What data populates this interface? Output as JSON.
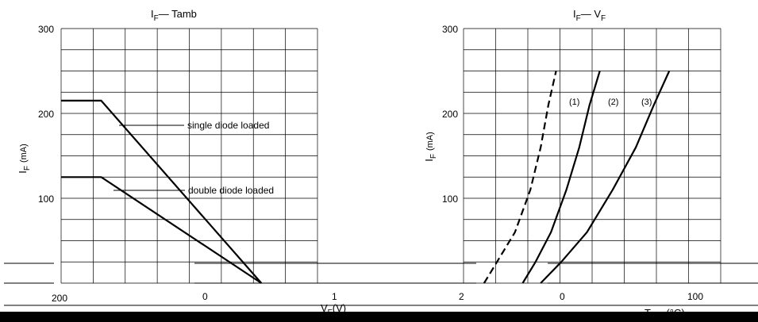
{
  "chart_data": [
    {
      "type": "line",
      "title": "I",
      "title_sub": "F",
      "title_rest": "— Tamb",
      "ylabel": "I",
      "ylabel_sub": "F",
      "ylabel_rest": "(mA)",
      "ylim": [
        0,
        300
      ],
      "yticks": [
        100,
        200,
        300
      ],
      "grid": true,
      "series": [
        {
          "name": "single diode loaded",
          "x": [
            0,
            25,
            125
          ],
          "y": [
            215,
            215,
            0
          ]
        },
        {
          "name": "double diode loaded",
          "x": [
            0,
            25,
            125
          ],
          "y": [
            125,
            125,
            0
          ]
        }
      ]
    },
    {
      "type": "line",
      "title": "I",
      "title_sub": "F",
      "title_rest": "— V",
      "title_sub2": "F",
      "ylabel": "I",
      "ylabel_sub": "F",
      "ylabel_rest": "(mA)",
      "ylim": [
        0,
        300
      ],
      "yticks": [
        100,
        200,
        300
      ],
      "grid": true,
      "series": [
        {
          "name": "(1)",
          "style": "dashed",
          "x": [
            0.38,
            0.43,
            0.5,
            0.56,
            0.6,
            0.63,
            0.66
          ],
          "y": [
            0,
            25,
            60,
            110,
            160,
            210,
            250
          ]
        },
        {
          "name": "(2)",
          "style": "solid",
          "x": [
            0.53,
            0.58,
            0.64,
            0.7,
            0.75,
            0.79,
            0.83
          ],
          "y": [
            0,
            25,
            60,
            110,
            160,
            210,
            250
          ]
        },
        {
          "name": "(3)",
          "style": "solid",
          "x": [
            0.6,
            0.68,
            0.78,
            0.88,
            0.97,
            1.04,
            1.1
          ],
          "y": [
            0,
            25,
            60,
            110,
            160,
            210,
            250
          ]
        }
      ]
    }
  ],
  "bottom_ticks": [
    "200",
    "0",
    "1",
    "2",
    "0",
    "100"
  ],
  "bottom_labels": {
    "left": {
      "main": "V",
      "sub": "F",
      "rest": "(V)"
    },
    "right": {
      "main": "T",
      "sub": "amb",
      "rest": "(°C)"
    }
  }
}
